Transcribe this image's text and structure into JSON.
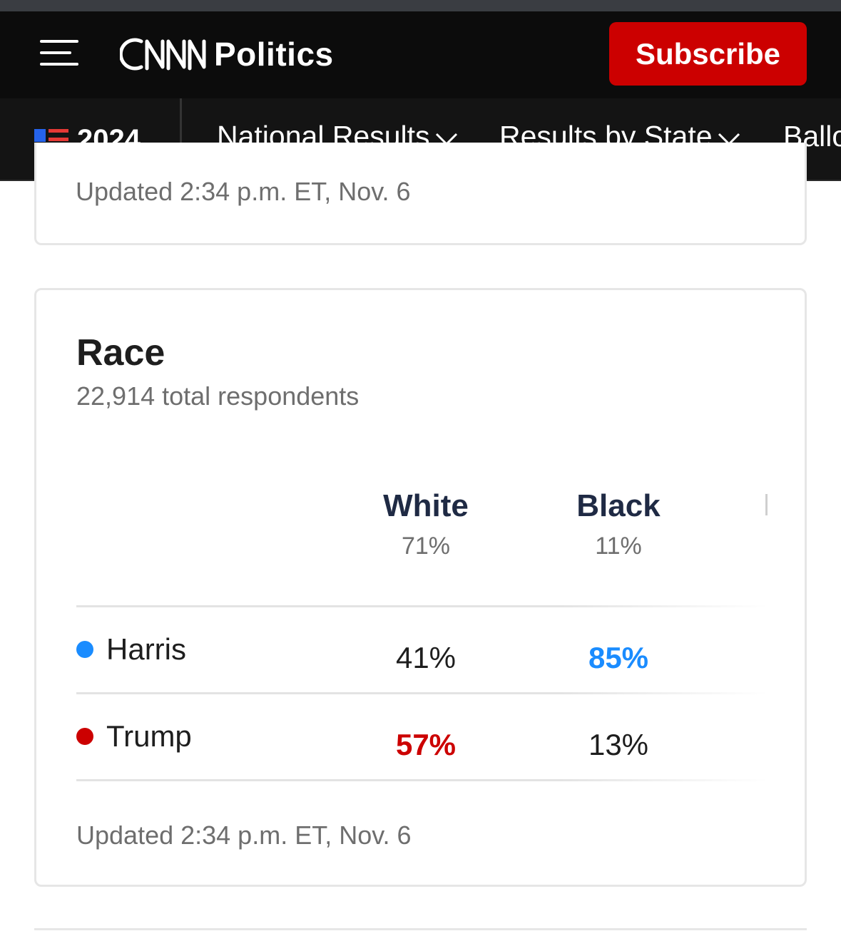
{
  "header": {
    "brand": "Politics",
    "logo": "CNN",
    "subscribe_label": "Subscribe",
    "menu_icon": "hamburger-icon"
  },
  "nav": {
    "year": "2024",
    "items": [
      {
        "label": "National Results"
      },
      {
        "label": "Results by State"
      },
      {
        "label": "Ballo"
      }
    ]
  },
  "previous_card": {
    "updated": "Updated 2:34 p.m. ET, Nov. 6"
  },
  "race_card": {
    "title": "Race",
    "subtitle": "22,914 total respondents",
    "columns": [
      {
        "name": "White",
        "share": "71%"
      },
      {
        "name": "Black",
        "share": "11%"
      }
    ],
    "rows": [
      {
        "candidate": "Harris",
        "color": "#1a8cff",
        "values": [
          "41%",
          "85%"
        ]
      },
      {
        "candidate": "Trump",
        "color": "#cc0000",
        "values": [
          "57%",
          "13%"
        ]
      }
    ],
    "updated": "Updated 2:34 p.m. ET, Nov. 6"
  },
  "colors": {
    "harris_blue": "#1a8cff",
    "trump_red": "#cc0000",
    "subscribe_red": "#cc0000",
    "header_bg": "#0c0c0c"
  }
}
